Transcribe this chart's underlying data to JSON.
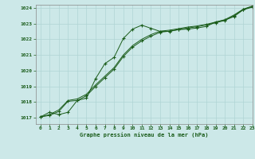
{
  "title": "Graphe pression niveau de la mer (hPa)",
  "bg_color": "#cce8e8",
  "line_color": "#1a5c1a",
  "grid_color": "#b0d4d4",
  "xlim": [
    -0.5,
    23
  ],
  "ylim": [
    1016.6,
    1024.2
  ],
  "xticks": [
    0,
    1,
    2,
    3,
    4,
    5,
    6,
    7,
    8,
    9,
    10,
    11,
    12,
    13,
    14,
    15,
    16,
    17,
    18,
    19,
    20,
    21,
    22,
    23
  ],
  "yticks": [
    1017,
    1018,
    1019,
    1020,
    1021,
    1022,
    1023,
    1024
  ],
  "line_wavy_x": [
    0,
    1,
    2,
    3,
    4,
    5,
    6,
    7,
    8,
    9,
    10,
    11,
    12,
    13,
    14,
    15,
    16,
    17,
    18,
    19,
    20,
    21,
    22,
    23
  ],
  "line_wavy_y": [
    1017.05,
    1017.35,
    1017.2,
    1017.35,
    1018.1,
    1018.25,
    1019.5,
    1020.45,
    1020.85,
    1022.05,
    1022.65,
    1022.9,
    1022.7,
    1022.5,
    1022.5,
    1022.62,
    1022.65,
    1022.72,
    1022.82,
    1023.1,
    1023.22,
    1023.45,
    1023.88,
    1024.05
  ],
  "line_diag1_x": [
    0,
    1,
    2,
    3,
    4,
    5,
    6,
    7,
    8,
    9,
    10,
    11,
    12,
    13,
    14,
    15,
    16,
    17,
    18,
    19,
    20,
    21,
    22,
    23
  ],
  "line_diag1_y": [
    1017.05,
    1017.15,
    1017.4,
    1018.05,
    1018.1,
    1018.4,
    1019.0,
    1019.55,
    1020.1,
    1020.9,
    1021.5,
    1021.9,
    1022.2,
    1022.45,
    1022.52,
    1022.62,
    1022.72,
    1022.8,
    1022.92,
    1023.05,
    1023.2,
    1023.5,
    1023.9,
    1024.1
  ],
  "line_diag2_x": [
    0,
    1,
    2,
    3,
    4,
    5,
    6,
    7,
    8,
    9,
    10,
    11,
    12,
    13,
    14,
    15,
    16,
    17,
    18,
    19,
    20,
    21,
    22,
    23
  ],
  "line_diag2_y": [
    1017.05,
    1017.2,
    1017.5,
    1018.1,
    1018.2,
    1018.5,
    1019.1,
    1019.65,
    1020.2,
    1021.0,
    1021.6,
    1022.0,
    1022.3,
    1022.52,
    1022.58,
    1022.68,
    1022.78,
    1022.85,
    1022.95,
    1023.1,
    1023.25,
    1023.55,
    1023.92,
    1024.12
  ]
}
